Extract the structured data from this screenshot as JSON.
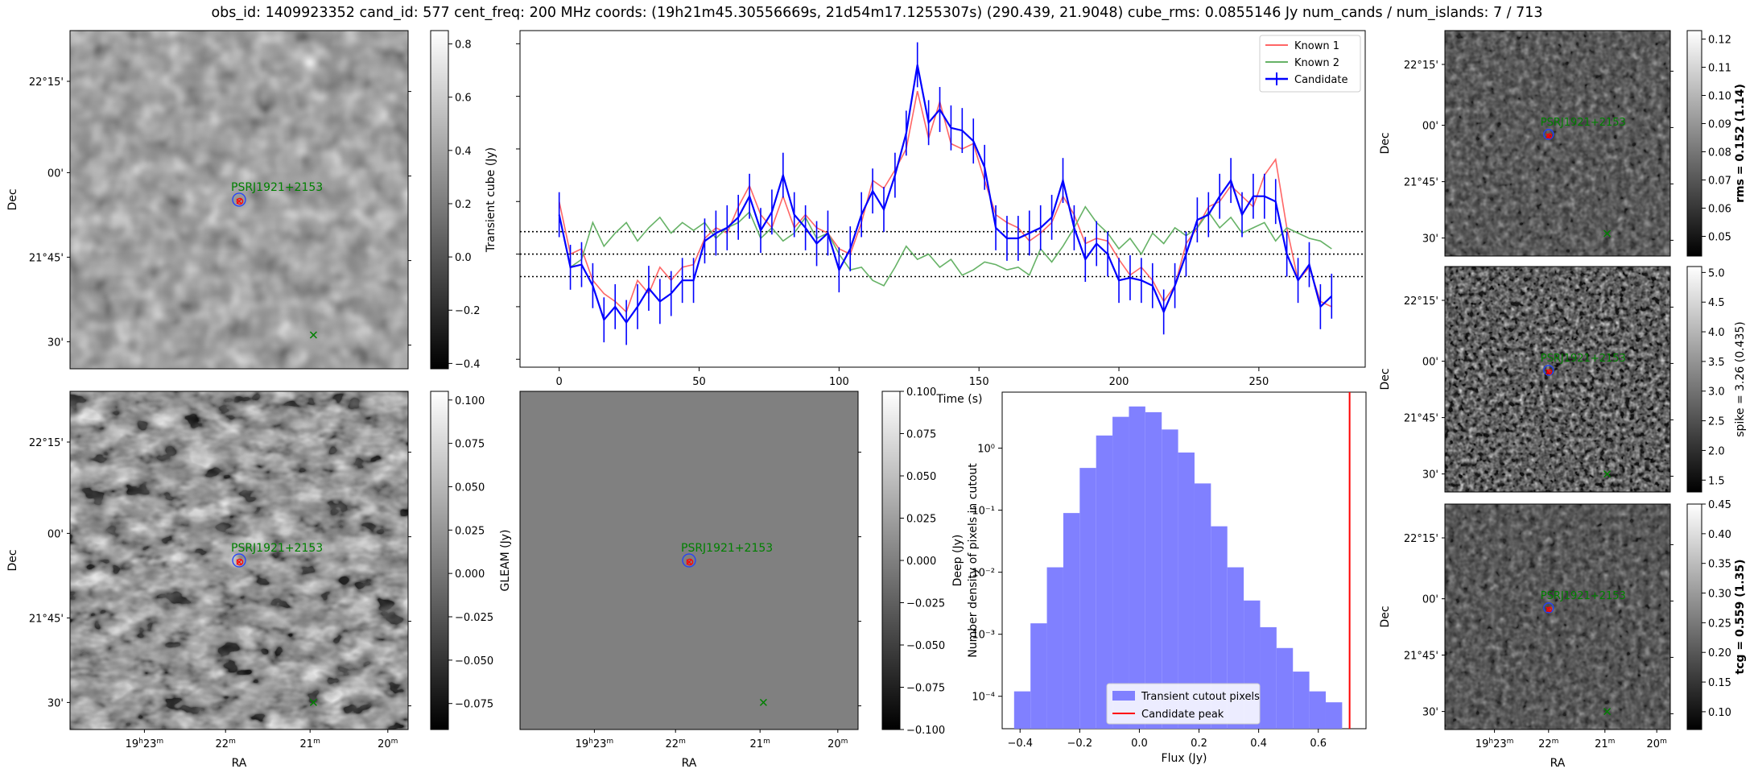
{
  "title": "obs_id: 1409923352 cand_id: 577 cent_freq: 200 MHz coords: (19h21m45.30556669s, 21d54m17.1255307s) (290.439, 21.9048) cube_rms: 0.0855146 Jy num_cands / num_islands: 7 / 713",
  "labels": {
    "dec": "Dec",
    "ra": "RA",
    "source_name": "PSRJ1921+2153",
    "transient_cube_axis": "Transient cube (Jy)",
    "gleam_axis": "GLEAM (Jy)",
    "deep_axis": "Deep (Jy)"
  },
  "sky_axes": {
    "dec_ticks": [
      "22°15'",
      "00'",
      "21°45'",
      "30'"
    ],
    "ra_ticks": [
      "19h23m",
      "22m",
      "21m",
      "20m"
    ]
  },
  "colors": {
    "candidate": "#0000ff",
    "known1": "#ff6666",
    "known2": "#66b266",
    "hist_fill": "#8080ff",
    "peak_line": "#ff0000",
    "marker_green": "#008000",
    "marker_red": "#ff0000"
  },
  "colorbars": {
    "transient": {
      "ticks": [
        "0.8",
        "0.6",
        "0.4",
        "0.2",
        "0.0",
        "−0.2",
        "−0.4"
      ],
      "vmin": -0.42,
      "vmax": 0.85
    },
    "deep": {
      "ticks": [
        "0.100",
        "0.075",
        "0.050",
        "0.025",
        "0.000",
        "−0.025",
        "−0.050",
        "−0.075"
      ],
      "vmin": -0.09,
      "vmax": 0.105
    },
    "gleam": {
      "ticks": [
        "0.100",
        "0.075",
        "0.050",
        "0.025",
        "0.000",
        "−0.025",
        "−0.050",
        "−0.075",
        "−0.100"
      ],
      "vmin": -0.1,
      "vmax": 0.1
    },
    "rms": {
      "label": "rms = 0.152 (1.14)",
      "ticks": [
        "0.12",
        "0.11",
        "0.10",
        "0.09",
        "0.08",
        "0.07",
        "0.06",
        "0.05"
      ],
      "vmin": 0.043,
      "vmax": 0.123
    },
    "spike": {
      "label": "spike = 3.26 (0.435)",
      "ticks": [
        "5.0",
        "4.5",
        "4.0",
        "3.5",
        "3.0",
        "2.5",
        "2.0",
        "1.5"
      ],
      "vmin": 1.3,
      "vmax": 5.1
    },
    "tcg": {
      "label": "tcg = 0.559 (1.35)",
      "ticks": [
        "0.45",
        "0.40",
        "0.35",
        "0.30",
        "0.25",
        "0.20",
        "0.15",
        "0.10"
      ],
      "vmin": 0.07,
      "vmax": 0.45
    }
  },
  "chart_data": [
    {
      "type": "line",
      "name": "lightcurve",
      "xlabel": "Time (s)",
      "ylabel": "",
      "xlim": [
        -14,
        288
      ],
      "ylim": [
        -0.43,
        0.85
      ],
      "x_ticks": [
        0,
        50,
        100,
        150,
        200,
        250
      ],
      "x_tick_labels": [
        "0",
        "50",
        "100",
        "150",
        "200",
        "250"
      ],
      "y_ticks": [
        -0.4,
        -0.2,
        0.0,
        0.2,
        0.4,
        0.6,
        0.8
      ],
      "y_error": 0.0855,
      "hlines": [
        -0.0855,
        0.0,
        0.0855
      ],
      "legend": [
        "Known 1",
        "Known 2",
        "Candidate"
      ],
      "legend_loc": "upper-right",
      "x": [
        0,
        4,
        8,
        12,
        16,
        20,
        24,
        28,
        32,
        36,
        40,
        44,
        48,
        52,
        56,
        60,
        64,
        68,
        72,
        76,
        80,
        84,
        88,
        92,
        96,
        100,
        104,
        108,
        112,
        116,
        120,
        124,
        128,
        132,
        136,
        140,
        144,
        148,
        152,
        156,
        160,
        164,
        168,
        172,
        176,
        180,
        184,
        188,
        192,
        196,
        200,
        204,
        208,
        212,
        216,
        220,
        224,
        228,
        232,
        236,
        240,
        244,
        248,
        252,
        256,
        260,
        264,
        268,
        272,
        276
      ],
      "series": [
        {
          "name": "Known 1",
          "values": [
            0.2,
            0.0,
            0.02,
            -0.1,
            -0.15,
            -0.18,
            -0.22,
            -0.1,
            -0.15,
            -0.05,
            -0.1,
            -0.05,
            -0.04,
            0.06,
            0.1,
            0.08,
            0.18,
            0.26,
            0.15,
            0.1,
            0.22,
            0.1,
            0.15,
            0.1,
            0.08,
            0.02,
            0.0,
            0.12,
            0.28,
            0.25,
            0.32,
            0.4,
            0.62,
            0.44,
            0.58,
            0.42,
            0.4,
            0.42,
            0.28,
            0.15,
            0.12,
            0.1,
            0.05,
            0.08,
            0.12,
            0.22,
            0.15,
            0.04,
            0.06,
            0.05,
            -0.02,
            -0.08,
            -0.05,
            -0.1,
            -0.18,
            -0.12,
            0.04,
            0.1,
            0.18,
            0.2,
            0.26,
            0.22,
            0.18,
            0.3,
            0.36,
            0.1,
            -0.1,
            -0.05,
            -0.18,
            -0.2
          ]
        },
        {
          "name": "Known 2",
          "values": [
            0.15,
            -0.05,
            -0.02,
            0.12,
            0.03,
            0.08,
            0.12,
            0.05,
            0.1,
            0.14,
            0.08,
            0.12,
            0.09,
            0.12,
            0.06,
            0.1,
            0.12,
            0.16,
            0.06,
            0.1,
            0.05,
            0.08,
            0.14,
            0.06,
            0.08,
            0.0,
            -0.06,
            -0.05,
            -0.1,
            -0.12,
            -0.05,
            0.03,
            -0.02,
            0.0,
            -0.05,
            -0.02,
            -0.08,
            -0.06,
            -0.03,
            -0.04,
            -0.06,
            -0.05,
            -0.08,
            0.02,
            -0.03,
            0.03,
            0.1,
            0.18,
            0.12,
            0.08,
            0.02,
            0.06,
            0.0,
            0.08,
            0.04,
            0.1,
            0.07,
            0.1,
            0.16,
            0.1,
            0.14,
            0.08,
            0.1,
            0.12,
            0.05,
            0.1,
            0.08,
            0.06,
            0.05,
            0.02
          ]
        },
        {
          "name": "Candidate",
          "values": [
            0.15,
            -0.05,
            -0.04,
            -0.12,
            -0.25,
            -0.2,
            -0.26,
            -0.2,
            -0.13,
            -0.18,
            -0.15,
            -0.1,
            -0.1,
            0.05,
            0.08,
            0.1,
            0.14,
            0.22,
            0.09,
            0.16,
            0.3,
            0.15,
            0.1,
            0.04,
            0.08,
            -0.06,
            0.02,
            0.15,
            0.24,
            0.17,
            0.3,
            0.46,
            0.72,
            0.5,
            0.55,
            0.48,
            0.47,
            0.43,
            0.33,
            0.1,
            0.06,
            0.06,
            0.08,
            0.1,
            0.14,
            0.28,
            0.1,
            -0.02,
            0.04,
            0.0,
            -0.1,
            -0.09,
            -0.1,
            -0.12,
            -0.22,
            -0.12,
            0.0,
            0.13,
            0.15,
            0.22,
            0.28,
            0.15,
            0.22,
            0.22,
            0.2,
            0.0,
            -0.1,
            -0.04,
            -0.2,
            -0.16
          ]
        }
      ]
    },
    {
      "type": "bar",
      "name": "histogram",
      "xlabel": "Flux (Jy)",
      "ylabel": "Number density of pixels in cutout",
      "y_scale": "log",
      "xlim": [
        -0.46,
        0.76
      ],
      "ylim": [
        3e-05,
        8
      ],
      "bin_edges": [
        -0.42,
        -0.365,
        -0.31,
        -0.255,
        -0.2,
        -0.145,
        -0.09,
        -0.035,
        0.02,
        0.075,
        0.13,
        0.185,
        0.24,
        0.295,
        0.35,
        0.405,
        0.46,
        0.515,
        0.57,
        0.625,
        0.68
      ],
      "values": [
        0.00012,
        0.0015,
        0.012,
        0.09,
        0.48,
        1.6,
        3.2,
        4.7,
        3.8,
        2.0,
        0.85,
        0.27,
        0.055,
        0.012,
        0.0035,
        0.0013,
        0.0006,
        0.00025,
        0.00012,
        8e-05
      ],
      "x_ticks": [
        -0.4,
        -0.2,
        0.0,
        0.2,
        0.4,
        0.6
      ],
      "x_tick_labels": [
        "−0.4",
        "−0.2",
        "0.0",
        "0.2",
        "0.4",
        "0.6"
      ],
      "y_ticks": [
        0.0001,
        0.001,
        0.01,
        0.1,
        1
      ],
      "y_tick_labels": [
        "10⁻⁴",
        "10⁻³",
        "10⁻²",
        "10⁻¹",
        "10⁰"
      ],
      "peak": 0.705,
      "legend": [
        "Transient cutout pixels",
        "Candidate peak"
      ],
      "legend_loc": "lower-center"
    }
  ]
}
